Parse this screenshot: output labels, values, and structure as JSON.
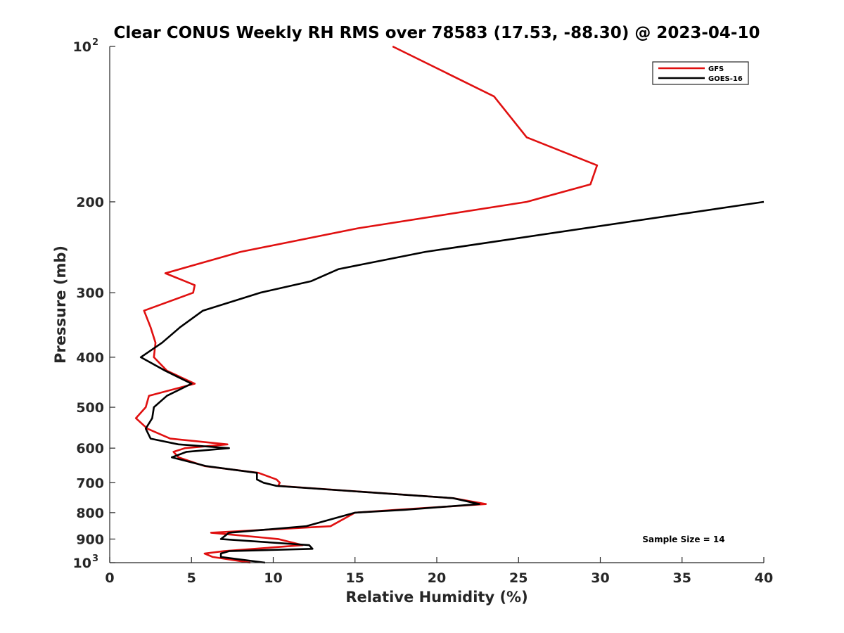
{
  "chart_data": {
    "type": "line",
    "title": "Clear CONUS Weekly RH RMS over 78583 (17.53, -88.30) @ 2023-04-10",
    "xlabel": "Relative Humidity (%)",
    "ylabel": "Pressure (mb)",
    "xlim": [
      0,
      40
    ],
    "ylim": [
      100,
      1000
    ],
    "y_scale": "log",
    "y_reversed": true,
    "grid": false,
    "legend_position": "top-right",
    "x_ticks": [
      0,
      5,
      10,
      15,
      20,
      25,
      30,
      35,
      40
    ],
    "y_ticks": [
      {
        "value": 100,
        "base": "10",
        "exp": "2"
      },
      {
        "value": 200,
        "label": "200"
      },
      {
        "value": 300,
        "label": "300"
      },
      {
        "value": 400,
        "label": "400"
      },
      {
        "value": 500,
        "label": "500"
      },
      {
        "value": 600,
        "label": "600"
      },
      {
        "value": 700,
        "label": "700"
      },
      {
        "value": 800,
        "label": "800"
      },
      {
        "value": 900,
        "label": "900"
      },
      {
        "value": 1000,
        "base": "10",
        "exp": "3"
      }
    ],
    "annotation": "Sample Size = 14",
    "series": [
      {
        "name": "GFS",
        "color": "#e01010",
        "points": [
          [
            17.3,
            100
          ],
          [
            23.5,
            125
          ],
          [
            25.5,
            150
          ],
          [
            29.8,
            170
          ],
          [
            29.4,
            185
          ],
          [
            25.5,
            200
          ],
          [
            15.2,
            225
          ],
          [
            8.0,
            250
          ],
          [
            3.4,
            275
          ],
          [
            5.2,
            290
          ],
          [
            5.1,
            300
          ],
          [
            2.1,
            325
          ],
          [
            2.5,
            350
          ],
          [
            2.8,
            375
          ],
          [
            2.7,
            400
          ],
          [
            3.5,
            425
          ],
          [
            5.2,
            450
          ],
          [
            2.4,
            475
          ],
          [
            2.2,
            500
          ],
          [
            1.6,
            525
          ],
          [
            2.3,
            550
          ],
          [
            3.7,
            575
          ],
          [
            7.2,
            590
          ],
          [
            4.6,
            600
          ],
          [
            3.9,
            610
          ],
          [
            4.2,
            625
          ],
          [
            5.8,
            650
          ],
          [
            9.1,
            670
          ],
          [
            10.2,
            690
          ],
          [
            10.4,
            700
          ],
          [
            10.3,
            710
          ],
          [
            21.0,
            750
          ],
          [
            23.0,
            770
          ],
          [
            17.5,
            790
          ],
          [
            15.0,
            800
          ],
          [
            13.5,
            850
          ],
          [
            6.2,
            875
          ],
          [
            10.3,
            900
          ],
          [
            11.8,
            925
          ],
          [
            7.0,
            950
          ],
          [
            5.8,
            960
          ],
          [
            6.3,
            975
          ],
          [
            8.6,
            1000
          ]
        ]
      },
      {
        "name": "GOES-16",
        "color": "#000000",
        "points": [
          [
            40.0,
            200
          ],
          [
            19.3,
            250
          ],
          [
            14.0,
            270
          ],
          [
            12.3,
            285
          ],
          [
            9.2,
            300
          ],
          [
            5.7,
            325
          ],
          [
            4.3,
            350
          ],
          [
            3.2,
            375
          ],
          [
            1.9,
            400
          ],
          [
            3.4,
            425
          ],
          [
            5.0,
            450
          ],
          [
            3.5,
            475
          ],
          [
            2.7,
            500
          ],
          [
            2.6,
            525
          ],
          [
            2.2,
            550
          ],
          [
            2.5,
            575
          ],
          [
            4.2,
            590
          ],
          [
            7.3,
            600
          ],
          [
            4.7,
            610
          ],
          [
            3.8,
            625
          ],
          [
            5.9,
            650
          ],
          [
            9.0,
            670
          ],
          [
            9.0,
            690
          ],
          [
            9.4,
            700
          ],
          [
            10.2,
            710
          ],
          [
            21.0,
            750
          ],
          [
            22.6,
            770
          ],
          [
            18.0,
            790
          ],
          [
            15.0,
            800
          ],
          [
            12.0,
            850
          ],
          [
            7.3,
            875
          ],
          [
            6.8,
            900
          ],
          [
            12.2,
            925
          ],
          [
            12.4,
            940
          ],
          [
            7.3,
            950
          ],
          [
            6.8,
            960
          ],
          [
            6.8,
            975
          ],
          [
            9.5,
            1000
          ]
        ]
      }
    ]
  }
}
